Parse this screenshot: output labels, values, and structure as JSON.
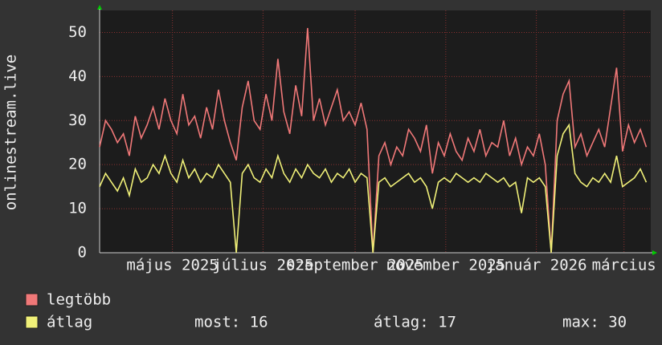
{
  "chart_data": {
    "type": "line",
    "y_label": "onlinestream.live",
    "x": [
      0,
      4,
      8,
      12,
      16,
      20,
      24,
      28,
      32,
      36,
      40,
      44,
      48,
      52,
      56,
      60,
      64,
      68,
      72,
      76,
      80,
      84,
      88,
      92,
      96,
      100,
      104,
      108,
      112,
      116,
      120,
      124,
      128,
      132,
      136,
      140,
      144,
      148,
      152,
      156,
      160,
      164,
      168,
      172,
      176,
      180,
      184,
      188,
      192,
      196,
      200,
      204,
      208,
      212,
      216,
      220,
      224,
      228,
      232,
      236,
      240,
      244,
      248,
      252,
      256,
      260,
      264,
      268,
      272,
      276,
      280,
      284,
      288,
      292,
      296,
      300,
      304,
      308,
      312,
      316,
      320,
      324,
      328,
      332,
      336,
      340,
      344,
      348,
      352,
      356,
      360,
      364,
      368
    ],
    "series": [
      {
        "name": "legtöbb",
        "color": "#f07878",
        "values": [
          24,
          30,
          28,
          25,
          27,
          22,
          31,
          26,
          29,
          33,
          28,
          35,
          30,
          27,
          36,
          29,
          31,
          26,
          33,
          28,
          37,
          30,
          25,
          21,
          33,
          39,
          30,
          28,
          36,
          30,
          44,
          32,
          27,
          38,
          31,
          51,
          30,
          35,
          29,
          33,
          37,
          30,
          32,
          29,
          34,
          28,
          0,
          22,
          25,
          20,
          24,
          22,
          28,
          26,
          23,
          29,
          18,
          25,
          22,
          27,
          23,
          21,
          26,
          23,
          28,
          22,
          25,
          24,
          30,
          22,
          26,
          20,
          24,
          22,
          27,
          20,
          0,
          30,
          36,
          39,
          24,
          27,
          22,
          25,
          28,
          24,
          33,
          42,
          23,
          29,
          25,
          28,
          24
        ]
      },
      {
        "name": "átlag",
        "color": "#f0f078",
        "values": [
          15,
          18,
          16,
          14,
          17,
          13,
          19,
          16,
          17,
          20,
          18,
          22,
          18,
          16,
          21,
          17,
          19,
          16,
          18,
          17,
          20,
          18,
          16,
          0,
          18,
          20,
          17,
          16,
          19,
          17,
          22,
          18,
          16,
          19,
          17,
          20,
          18,
          17,
          19,
          16,
          18,
          17,
          19,
          16,
          18,
          17,
          0,
          16,
          17,
          15,
          16,
          17,
          18,
          16,
          17,
          15,
          10,
          16,
          17,
          16,
          18,
          17,
          16,
          17,
          16,
          18,
          17,
          16,
          17,
          15,
          16,
          9,
          17,
          16,
          17,
          15,
          0,
          22,
          27,
          29,
          18,
          16,
          15,
          17,
          16,
          18,
          16,
          22,
          15,
          16,
          17,
          19,
          16
        ]
      }
    ],
    "xlim": [
      0,
      371
    ],
    "xticks": [
      {
        "value": 49,
        "label": "május 2025"
      },
      {
        "value": 110,
        "label": "július 2025"
      },
      {
        "value": 172,
        "label": "szeptember 2025"
      },
      {
        "value": 233,
        "label": "november 2025"
      },
      {
        "value": 294,
        "label": "január 2026"
      },
      {
        "value": 353,
        "label": "március"
      }
    ],
    "ylim": [
      0,
      55
    ],
    "yticks": [
      0,
      10,
      20,
      30,
      40,
      50
    ],
    "grid": true,
    "stats": [
      "most: 16",
      "átlag: 17",
      "max: 30"
    ]
  }
}
